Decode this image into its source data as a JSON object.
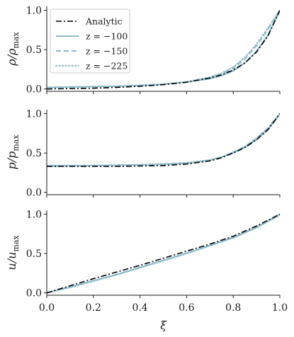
{
  "chart_data": [
    {
      "type": "line",
      "ylabel": "ρ/ρmax",
      "ylabel_main": "ρ/ρ",
      "ylabel_sub": "max",
      "ylim": [
        -0.03,
        1.05
      ],
      "yticks": [
        0.0,
        0.5,
        1.0
      ],
      "ytick_labels": [
        "0.0",
        "0.5",
        "1.0"
      ],
      "xlim": [
        0.0,
        1.0
      ],
      "legend": {
        "location": "upper-left",
        "entries": [
          "Analytic",
          "z = −100",
          "z = −150",
          "z = −225"
        ]
      },
      "series": [
        {
          "name": "Analytic",
          "style": "dashdot",
          "color": "#000000",
          "x": [
            0.0,
            0.1,
            0.2,
            0.3,
            0.4,
            0.5,
            0.6,
            0.7,
            0.75,
            0.8,
            0.85,
            0.9,
            0.95,
            1.0
          ],
          "y": [
            0.0,
            0.005,
            0.01,
            0.02,
            0.035,
            0.055,
            0.085,
            0.14,
            0.18,
            0.24,
            0.33,
            0.47,
            0.68,
            1.0
          ]
        },
        {
          "name": "z = −100",
          "style": "solid",
          "color": "#8fbccc",
          "x": [
            0.0,
            0.1,
            0.2,
            0.3,
            0.4,
            0.5,
            0.6,
            0.7,
            0.75,
            0.8,
            0.85,
            0.9,
            0.95,
            1.0
          ],
          "y": [
            0.02,
            0.025,
            0.03,
            0.035,
            0.045,
            0.06,
            0.09,
            0.13,
            0.17,
            0.23,
            0.33,
            0.48,
            0.69,
            0.99
          ]
        },
        {
          "name": "z = −150",
          "style": "dashed",
          "color": "#8fbccc",
          "x": [
            0.0,
            0.1,
            0.2,
            0.3,
            0.4,
            0.5,
            0.6,
            0.7,
            0.75,
            0.8,
            0.85,
            0.9,
            0.95,
            1.0
          ],
          "y": [
            0.02,
            0.025,
            0.03,
            0.035,
            0.045,
            0.06,
            0.09,
            0.14,
            0.19,
            0.26,
            0.38,
            0.55,
            0.76,
            1.0
          ]
        },
        {
          "name": "z = −225",
          "style": "dotted",
          "color": "#8fbccc",
          "x": [
            0.0,
            0.1,
            0.2,
            0.3,
            0.4,
            0.5,
            0.6,
            0.7,
            0.75,
            0.8,
            0.85,
            0.9,
            0.95,
            1.0
          ],
          "y": [
            0.02,
            0.025,
            0.03,
            0.035,
            0.045,
            0.06,
            0.09,
            0.15,
            0.2,
            0.28,
            0.4,
            0.57,
            0.78,
            1.0
          ]
        }
      ]
    },
    {
      "type": "line",
      "ylabel": "p/pmax",
      "ylabel_main": "p/p",
      "ylabel_sub": "max",
      "ylim": [
        -0.03,
        1.05
      ],
      "yticks": [
        0.0,
        0.5,
        1.0
      ],
      "ytick_labels": [
        "0.0",
        "0.5",
        "1.0"
      ],
      "xlim": [
        0.0,
        1.0
      ],
      "series": [
        {
          "name": "Analytic",
          "style": "dashdot",
          "color": "#000000",
          "x": [
            0.0,
            0.1,
            0.2,
            0.3,
            0.4,
            0.5,
            0.6,
            0.7,
            0.75,
            0.8,
            0.85,
            0.9,
            0.95,
            1.0
          ],
          "y": [
            0.33,
            0.33,
            0.33,
            0.33,
            0.335,
            0.34,
            0.36,
            0.4,
            0.44,
            0.5,
            0.57,
            0.67,
            0.8,
            1.0
          ]
        },
        {
          "name": "z = −100",
          "style": "solid",
          "color": "#8fbccc",
          "x": [
            0.0,
            0.1,
            0.2,
            0.3,
            0.4,
            0.5,
            0.6,
            0.7,
            0.75,
            0.8,
            0.85,
            0.9,
            0.95,
            1.0
          ],
          "y": [
            0.34,
            0.34,
            0.34,
            0.345,
            0.35,
            0.355,
            0.37,
            0.41,
            0.45,
            0.5,
            0.57,
            0.67,
            0.8,
            0.99
          ]
        },
        {
          "name": "z = −150",
          "style": "dashed",
          "color": "#8fbccc",
          "x": [
            0.0,
            0.1,
            0.2,
            0.3,
            0.4,
            0.5,
            0.6,
            0.7,
            0.75,
            0.8,
            0.85,
            0.9,
            0.95,
            1.0
          ],
          "y": [
            0.33,
            0.335,
            0.34,
            0.345,
            0.35,
            0.36,
            0.375,
            0.41,
            0.45,
            0.51,
            0.58,
            0.69,
            0.82,
            1.0
          ]
        },
        {
          "name": "z = −225",
          "style": "dotted",
          "color": "#8fbccc",
          "x": [
            0.0,
            0.1,
            0.2,
            0.3,
            0.4,
            0.5,
            0.6,
            0.7,
            0.75,
            0.8,
            0.85,
            0.9,
            0.95,
            1.0
          ],
          "y": [
            0.33,
            0.335,
            0.34,
            0.345,
            0.35,
            0.36,
            0.375,
            0.41,
            0.45,
            0.51,
            0.58,
            0.69,
            0.82,
            1.0
          ]
        }
      ]
    },
    {
      "type": "line",
      "ylabel": "u/umax",
      "ylabel_main": "u/u",
      "ylabel_sub": "max",
      "xlabel": "ξ",
      "ylim": [
        -0.03,
        1.05
      ],
      "yticks": [
        0.0,
        0.5,
        1.0
      ],
      "ytick_labels": [
        "0.0",
        "0.5",
        "1.0"
      ],
      "xlim": [
        0.0,
        1.0
      ],
      "xticks": [
        0.0,
        0.2,
        0.4,
        0.6,
        0.8,
        1.0
      ],
      "xtick_labels": [
        "0.0",
        "0.2",
        "0.4",
        "0.6",
        "0.8",
        "1.0"
      ],
      "series": [
        {
          "name": "Analytic",
          "style": "dashdot",
          "color": "#000000",
          "x": [
            0.0,
            0.1,
            0.2,
            0.3,
            0.4,
            0.5,
            0.6,
            0.7,
            0.8,
            0.9,
            1.0
          ],
          "y": [
            0.0,
            0.09,
            0.18,
            0.265,
            0.35,
            0.44,
            0.53,
            0.62,
            0.72,
            0.85,
            1.0
          ]
        },
        {
          "name": "z = −100",
          "style": "solid",
          "color": "#8fbccc",
          "x": [
            0.0,
            0.1,
            0.2,
            0.3,
            0.4,
            0.5,
            0.6,
            0.7,
            0.8,
            0.9,
            1.0
          ],
          "y": [
            0.0,
            0.07,
            0.15,
            0.23,
            0.32,
            0.41,
            0.5,
            0.6,
            0.7,
            0.83,
            0.99
          ]
        },
        {
          "name": "z = −150",
          "style": "dashed",
          "color": "#8fbccc",
          "x": [
            0.0,
            0.1,
            0.2,
            0.3,
            0.4,
            0.5,
            0.6,
            0.7,
            0.8,
            0.9,
            1.0
          ],
          "y": [
            0.0,
            0.075,
            0.155,
            0.235,
            0.325,
            0.415,
            0.505,
            0.605,
            0.705,
            0.835,
            1.0
          ]
        },
        {
          "name": "z = −225",
          "style": "dotted",
          "color": "#8fbccc",
          "x": [
            0.0,
            0.1,
            0.2,
            0.3,
            0.4,
            0.5,
            0.6,
            0.7,
            0.8,
            0.9,
            1.0
          ],
          "y": [
            0.0,
            0.075,
            0.155,
            0.235,
            0.325,
            0.415,
            0.505,
            0.605,
            0.705,
            0.835,
            1.0
          ]
        }
      ]
    }
  ]
}
